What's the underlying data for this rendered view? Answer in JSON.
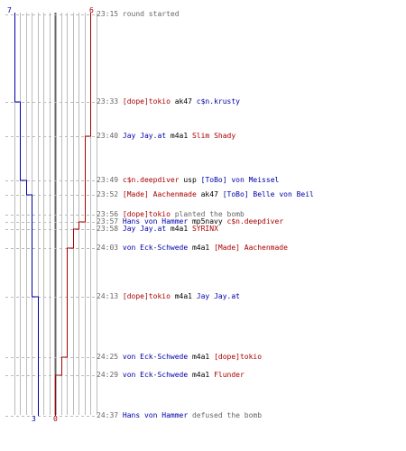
{
  "counts": {
    "blue_start": "7",
    "red_start": "6",
    "blue_end": "3",
    "red_end": "0"
  },
  "colors": {
    "blue": "#0000aa",
    "red": "#aa0000",
    "grid": "#bbbbbb",
    "center": "#666666",
    "time": "#666666"
  },
  "events": [
    {
      "time": "23:15",
      "parts": [
        {
          "t": "round started",
          "c": "u"
        }
      ]
    },
    {
      "time": "23:33",
      "parts": [
        {
          "t": "[dope]tokio",
          "c": "r"
        },
        {
          "t": " ak47 ",
          "c": "k"
        },
        {
          "t": "c$n.krusty",
          "c": "b"
        }
      ]
    },
    {
      "time": "23:40",
      "parts": [
        {
          "t": "Jay Jay.at",
          "c": "b"
        },
        {
          "t": " m4a1 ",
          "c": "k"
        },
        {
          "t": "Slim Shady",
          "c": "r"
        }
      ]
    },
    {
      "time": "23:49",
      "parts": [
        {
          "t": "c$n.deepdiver",
          "c": "r"
        },
        {
          "t": " usp ",
          "c": "k"
        },
        {
          "t": "[ToBo] von Meissel",
          "c": "b"
        }
      ]
    },
    {
      "time": "23:52",
      "parts": [
        {
          "t": "[Made] Aachenmade",
          "c": "r"
        },
        {
          "t": " ak47 ",
          "c": "k"
        },
        {
          "t": "[ToBo] Belle von Beil",
          "c": "b"
        }
      ]
    },
    {
      "time": "23:56",
      "parts": [
        {
          "t": "[dope]tokio",
          "c": "r"
        },
        {
          "t": " planted the bomb",
          "c": "u"
        }
      ]
    },
    {
      "time": "23:57",
      "parts": [
        {
          "t": "Hans von Hammer",
          "c": "b"
        },
        {
          "t": " mp5navy ",
          "c": "k"
        },
        {
          "t": "c$n.deepdiver",
          "c": "r"
        }
      ]
    },
    {
      "time": "23:58",
      "parts": [
        {
          "t": "Jay Jay.at",
          "c": "b"
        },
        {
          "t": " m4a1 ",
          "c": "k"
        },
        {
          "t": "SYRINX",
          "c": "r"
        }
      ]
    },
    {
      "time": "24:03",
      "parts": [
        {
          "t": "von Eck-Schwede",
          "c": "b"
        },
        {
          "t": " m4a1 ",
          "c": "k"
        },
        {
          "t": "[Made] Aachenmade",
          "c": "r"
        }
      ]
    },
    {
      "time": "24:13",
      "parts": [
        {
          "t": "[dope]tokio",
          "c": "r"
        },
        {
          "t": " m4a1 ",
          "c": "k"
        },
        {
          "t": "Jay Jay.at",
          "c": "b"
        }
      ]
    },
    {
      "time": "24:25",
      "parts": [
        {
          "t": "von Eck-Schwede",
          "c": "b"
        },
        {
          "t": " m4a1 ",
          "c": "k"
        },
        {
          "t": "[dope]tokio",
          "c": "r"
        }
      ]
    },
    {
      "time": "24:29",
      "parts": [
        {
          "t": "von Eck-Schwede",
          "c": "b"
        },
        {
          "t": " m4a1 ",
          "c": "k"
        },
        {
          "t": "Flunder",
          "c": "r"
        }
      ]
    },
    {
      "time": "24:37",
      "parts": [
        {
          "t": "Hans von Hammer",
          "c": "b"
        },
        {
          "t": " defused the bomb",
          "c": "u"
        }
      ]
    }
  ],
  "blue_steps": [
    7,
    6,
    6,
    5,
    4,
    4,
    4,
    4,
    4,
    3,
    3,
    3,
    3
  ],
  "red_steps": [
    6,
    6,
    5,
    5,
    5,
    5,
    4,
    3,
    2,
    2,
    1,
    0,
    0
  ]
}
